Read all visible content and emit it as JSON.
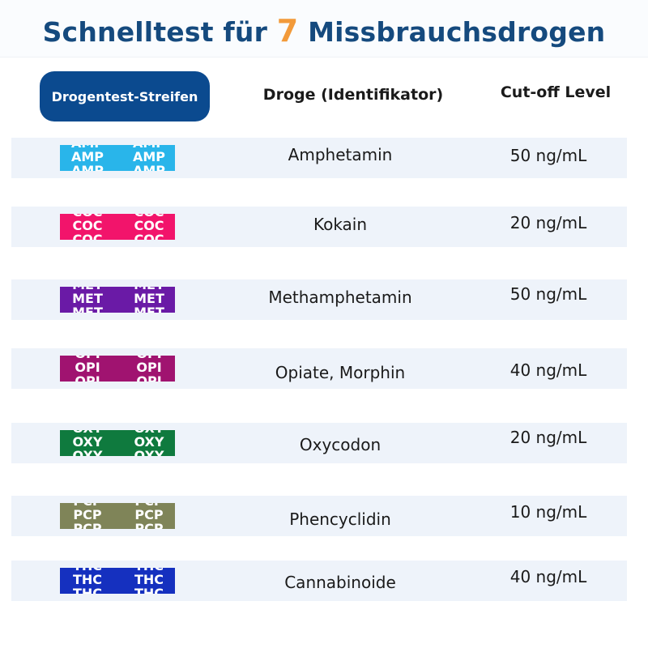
{
  "title": {
    "prefix": "Schnelltest für ",
    "number": "7",
    "suffix": " Missbrauchsdrogen"
  },
  "headers": {
    "strip": "Drogentest-Streifen",
    "drug": "Droge (Identifikator)",
    "cutoff": "Cut-off Level"
  },
  "colors": {
    "title": "#154a7e",
    "number": "#f29a3a",
    "pill": "#0b4a8f",
    "row_bg": "#eef3fa"
  },
  "rows": [
    {
      "code": "AMP",
      "drug": "Amphetamin",
      "cutoff": "50 ng/mL",
      "color": "#29b5ea"
    },
    {
      "code": "COC",
      "drug": "Kokain",
      "cutoff": "20 ng/mL",
      "color": "#f2146b"
    },
    {
      "code": "MET",
      "drug": "Methamphetamin",
      "cutoff": "50 ng/mL",
      "color": "#6a1aa6"
    },
    {
      "code": "OPI",
      "drug": "Opiate, Morphin",
      "cutoff": "40 ng/mL",
      "color": "#a01370"
    },
    {
      "code": "OXY",
      "drug": "Oxycodon",
      "cutoff": "20 ng/mL",
      "color": "#0f7a3e"
    },
    {
      "code": "PCP",
      "drug": "Phencyclidin",
      "cutoff": "10 ng/mL",
      "color": "#7f8458"
    },
    {
      "code": "THC",
      "drug": "Cannabinoide",
      "cutoff": "40 ng/mL",
      "color": "#1530bf"
    }
  ]
}
